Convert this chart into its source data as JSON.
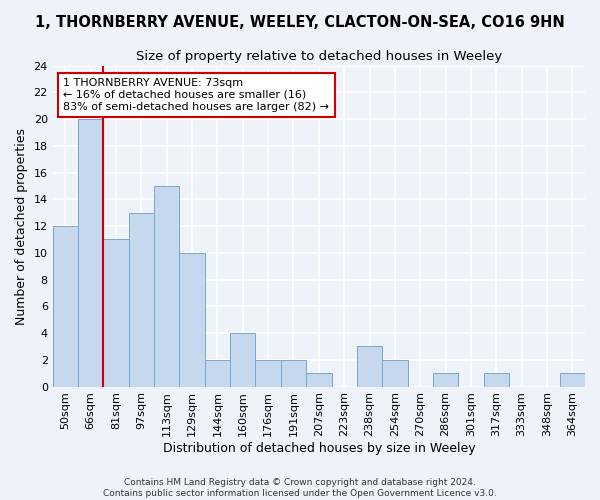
{
  "title_line1": "1, THORNBERRY AVENUE, WEELEY, CLACTON-ON-SEA, CO16 9HN",
  "title_line2": "Size of property relative to detached houses in Weeley",
  "xlabel": "Distribution of detached houses by size in Weeley",
  "ylabel": "Number of detached properties",
  "categories": [
    "50sqm",
    "66sqm",
    "81sqm",
    "97sqm",
    "113sqm",
    "129sqm",
    "144sqm",
    "160sqm",
    "176sqm",
    "191sqm",
    "207sqm",
    "223sqm",
    "238sqm",
    "254sqm",
    "270sqm",
    "286sqm",
    "301sqm",
    "317sqm",
    "333sqm",
    "348sqm",
    "364sqm"
  ],
  "values": [
    12,
    20,
    11,
    13,
    15,
    10,
    2,
    4,
    2,
    2,
    1,
    0,
    3,
    2,
    0,
    1,
    0,
    1,
    0,
    0,
    1
  ],
  "bar_color": "#c5d8ee",
  "bar_edge_color": "#7ba7cc",
  "vline_color": "#cc0000",
  "annotation_text": "1 THORNBERRY AVENUE: 73sqm\n← 16% of detached houses are smaller (16)\n83% of semi-detached houses are larger (82) →",
  "annotation_box_color": "white",
  "annotation_box_edge_color": "#cc0000",
  "ylim": [
    0,
    24
  ],
  "yticks": [
    0,
    2,
    4,
    6,
    8,
    10,
    12,
    14,
    16,
    18,
    20,
    22,
    24
  ],
  "footnote": "Contains HM Land Registry data © Crown copyright and database right 2024.\nContains public sector information licensed under the Open Government Licence v3.0.",
  "bg_color": "#eef2f9",
  "grid_color": "#ffffff",
  "title_fontsize": 10.5,
  "subtitle_fontsize": 9.5,
  "axis_label_fontsize": 9,
  "tick_fontsize": 8,
  "annotation_fontsize": 8,
  "footnote_fontsize": 6.5
}
